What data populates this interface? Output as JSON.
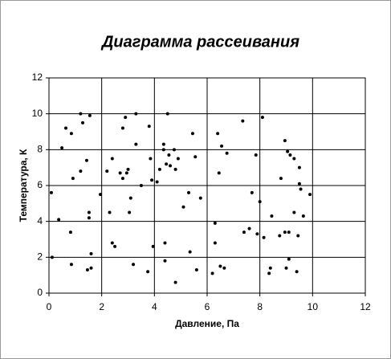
{
  "chart_data": {
    "type": "scatter",
    "title": "Диаграмма рассеивания",
    "x_label": "Давление, Па",
    "y_label": "Температура, К",
    "color": "#000000",
    "grid": true,
    "xlim": [
      0,
      12
    ],
    "ylim": [
      0,
      12
    ],
    "xticks": [
      0,
      2,
      4,
      6,
      8,
      10,
      12
    ],
    "yticks": [
      0,
      2,
      4,
      6,
      8,
      10,
      12
    ],
    "x": [
      0.09,
      0.12,
      0.37,
      0.49,
      0.64,
      0.82,
      0.85,
      0.85,
      0.91,
      1.2,
      1.2,
      1.28,
      1.43,
      1.46,
      1.52,
      1.52,
      1.55,
      1.6,
      1.6,
      1.95,
      2.2,
      2.3,
      2.4,
      2.4,
      2.5,
      2.7,
      2.8,
      2.9,
      2.8,
      2.95,
      3.0,
      3.05,
      3.1,
      3.2,
      3.3,
      3.3,
      3.5,
      3.75,
      3.8,
      3.85,
      3.9,
      3.95,
      4.1,
      4.2,
      4.35,
      4.35,
      4.4,
      4.4,
      4.45,
      4.5,
      4.55,
      4.6,
      4.75,
      4.8,
      4.8,
      4.9,
      5.1,
      5.3,
      5.35,
      5.45,
      5.55,
      5.6,
      5.75,
      6.2,
      6.3,
      6.3,
      6.4,
      6.45,
      6.5,
      6.55,
      6.65,
      6.75,
      7.35,
      7.4,
      7.6,
      7.7,
      7.85,
      7.9,
      8.0,
      8.1,
      8.15,
      8.35,
      8.4,
      8.45,
      8.75,
      8.8,
      8.95,
      8.95,
      9.0,
      9.05,
      9.1,
      9.1,
      9.15,
      9.3,
      9.3,
      9.4,
      9.45,
      9.5,
      9.5,
      9.55,
      9.65,
      9.9
    ],
    "y": [
      5.6,
      2.0,
      4.1,
      8.1,
      9.2,
      3.4,
      8.9,
      1.6,
      6.4,
      6.8,
      10.0,
      9.5,
      7.4,
      1.3,
      4.5,
      4.2,
      9.9,
      2.2,
      1.4,
      5.5,
      6.8,
      4.5,
      7.5,
      2.8,
      2.6,
      6.7,
      6.4,
      9.8,
      9.2,
      6.7,
      6.9,
      4.5,
      5.3,
      1.6,
      8.3,
      10.0,
      6.0,
      1.2,
      9.3,
      7.5,
      6.3,
      2.6,
      6.2,
      6.9,
      8.3,
      8.0,
      1.8,
      2.8,
      7.2,
      10.0,
      7.7,
      7.1,
      8.0,
      6.9,
      0.6,
      7.5,
      4.8,
      5.6,
      2.3,
      8.9,
      7.6,
      1.3,
      5.3,
      1.1,
      2.8,
      3.9,
      8.9,
      6.7,
      1.5,
      8.2,
      1.4,
      7.8,
      9.6,
      3.4,
      3.6,
      5.6,
      7.7,
      3.3,
      5.1,
      9.8,
      3.1,
      1.1,
      1.4,
      4.3,
      3.2,
      6.4,
      8.5,
      3.4,
      1.4,
      7.9,
      1.9,
      3.4,
      7.7,
      7.5,
      4.5,
      1.2,
      3.2,
      7.0,
      6.1,
      5.8,
      4.3,
      5.5
    ]
  }
}
